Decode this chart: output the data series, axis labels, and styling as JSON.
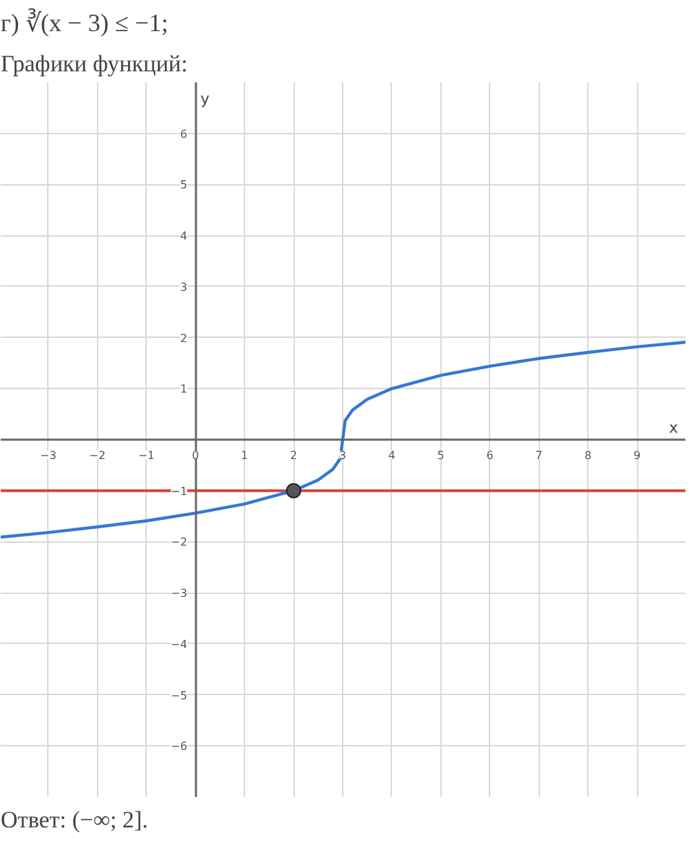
{
  "chart_data": {
    "type": "line",
    "title": "г) ∛(x − 3) ≤ −1;",
    "subtitle": "Графики функций:",
    "xlabel": "x",
    "ylabel": "y",
    "annotations": [
      "Ответ: (−∞; 2]."
    ],
    "xlim": [
      -3.97,
      10
    ],
    "ylim": [
      -7,
      7
    ],
    "xticks": [
      -3,
      -2,
      -1,
      0,
      1,
      2,
      3,
      4,
      5,
      6,
      7,
      8,
      9
    ],
    "yticks": [
      -6,
      -5,
      -4,
      -3,
      -2,
      -1,
      1,
      2,
      3,
      4,
      5,
      6
    ],
    "grid": true,
    "marker": "none",
    "line_style": "solid",
    "series": [
      {
        "color": "#3478d4",
        "x": [
          -3.97,
          -3,
          -2,
          -1,
          0,
          1,
          2,
          2.5,
          2.8,
          2.95,
          3,
          3.05,
          3.2,
          3.5,
          4,
          5,
          6,
          7,
          8,
          9,
          10
        ],
        "values": [
          -1.91,
          -1.82,
          -1.71,
          -1.59,
          -1.44,
          -1.26,
          -1,
          -0.79,
          -0.58,
          -0.37,
          0,
          0.37,
          0.58,
          0.79,
          1,
          1.26,
          1.44,
          1.59,
          1.71,
          1.82,
          1.91
        ]
      },
      {
        "type": "scatter",
        "color": "#555555",
        "marker": "circle",
        "x": [
          2
        ],
        "values": [
          -1
        ]
      }
    ],
    "ref_lines": [
      {
        "axis": "y",
        "value": -1,
        "color": "#d9413b",
        "line_style": "solid"
      }
    ]
  }
}
